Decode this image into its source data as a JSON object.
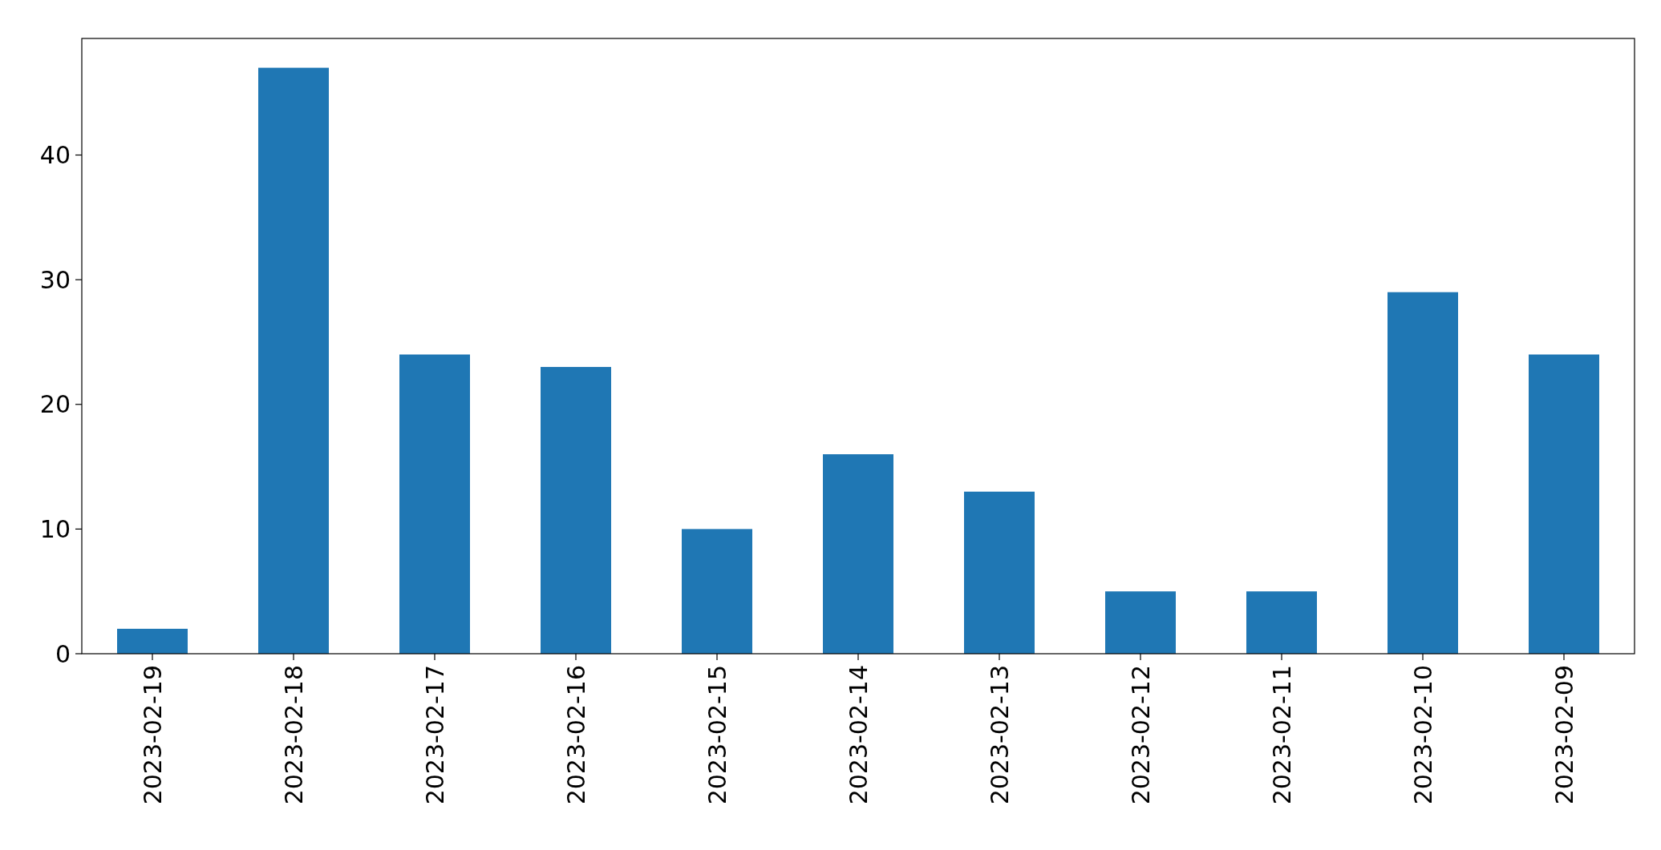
{
  "chart_data": {
    "type": "bar",
    "categories": [
      "2023-02-19",
      "2023-02-18",
      "2023-02-17",
      "2023-02-16",
      "2023-02-15",
      "2023-02-14",
      "2023-02-13",
      "2023-02-12",
      "2023-02-11",
      "2023-02-10",
      "2023-02-09"
    ],
    "values": [
      2,
      47,
      24,
      23,
      10,
      16,
      13,
      5,
      5,
      29,
      24
    ],
    "color": "#1f77b4",
    "ylim": [
      0,
      49.35
    ],
    "yticks": [
      0,
      10,
      20,
      30,
      40
    ],
    "grid": false
  }
}
